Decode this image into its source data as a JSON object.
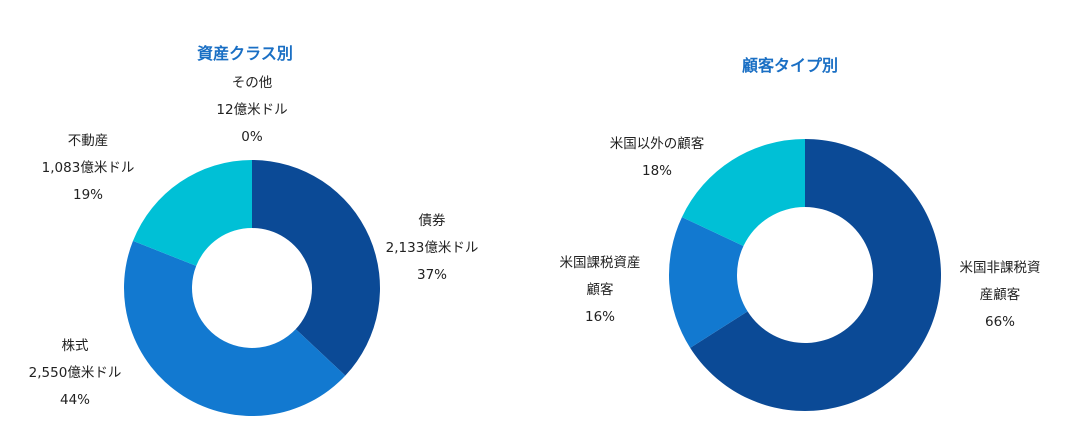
{
  "chart_data": [
    {
      "type": "pie",
      "title": "資産クラス別",
      "categories": [
        "債券",
        "株式",
        "不動産",
        "その他"
      ],
      "values": [
        37,
        44,
        19,
        0
      ],
      "value_labels": [
        "37%",
        "44%",
        "19%",
        "0%"
      ],
      "amount_labels": [
        "2,133億米ドル",
        "2,550億米ドル",
        "1,083億米ドル",
        "12億米ドル"
      ],
      "colors": [
        "#0b4a96",
        "#1279d0",
        "#00c0d6",
        "#5fd3e3"
      ]
    },
    {
      "type": "pie",
      "title": "顧客タイプ別",
      "categories": [
        "米国非課税資産顧客",
        "米国課税資産顧客",
        "米国以外の顧客"
      ],
      "values": [
        66,
        16,
        18
      ],
      "value_labels": [
        "66%",
        "16%",
        "18%"
      ],
      "colors": [
        "#0b4a96",
        "#1279d0",
        "#00c0d6"
      ]
    }
  ]
}
